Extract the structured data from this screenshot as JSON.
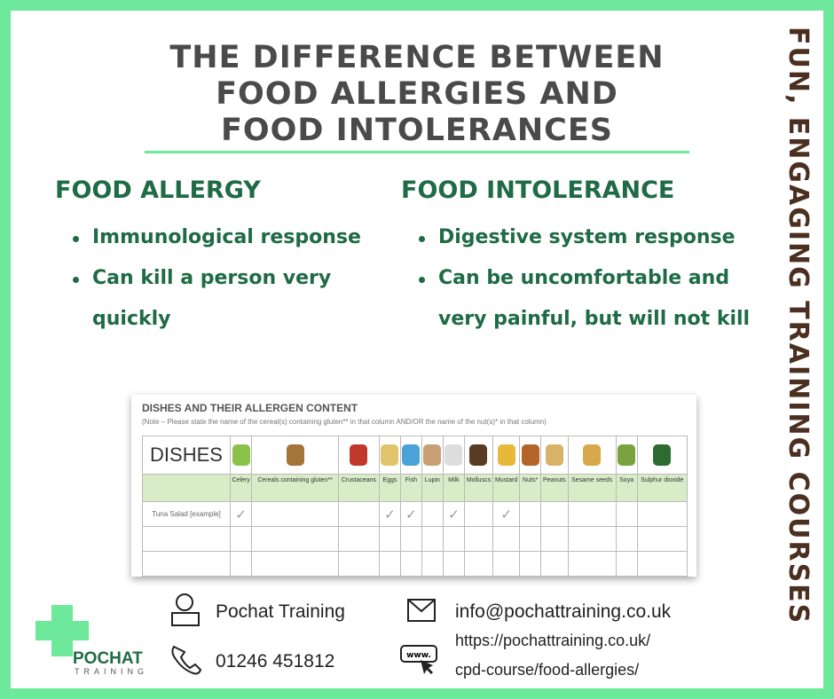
{
  "header": {
    "title_lines": [
      "THE DIFFERENCE BETWEEN",
      "FOOD ALLERGIES AND",
      "FOOD INTOLERANCES"
    ]
  },
  "columns": [
    {
      "heading": "FOOD ALLERGY",
      "bullets": [
        "Immunological response",
        "Can kill a person very quickly"
      ]
    },
    {
      "heading": "FOOD INTOLERANCE",
      "bullets": [
        "Digestive system response",
        "Can be uncomfortable and very painful, but will not kill"
      ]
    }
  ],
  "table": {
    "title": "DISHES AND THEIR ALLERGEN CONTENT",
    "note": "(Note – Please state the name of the cereal(s) containing gluten** in that column AND/OR the name of the nut(s)* in that column)",
    "corner": "DISHES",
    "allergens": [
      "Celery",
      "Cereals containing gluten**",
      "Crustaceans",
      "Eggs",
      "Fish",
      "Lupin",
      "Milk",
      "Molluscs",
      "Mustard",
      "Nuts*",
      "Peanuts",
      "Sesame seeds",
      "Soya",
      "Sulphur dioxide"
    ],
    "rows": [
      {
        "dish": "Tuna Salad [example]",
        "cells": [
          "✓",
          null,
          null,
          "✓",
          "✓",
          null,
          "✓",
          null,
          "✓",
          null,
          null,
          null,
          null,
          null
        ]
      }
    ]
  },
  "logo": {
    "name": "POCHAT",
    "sub": "TRAINING"
  },
  "contact": {
    "company": "Pochat Training",
    "phone": "01246 451812",
    "email": "info@pochattraining.co.uk",
    "url_lines": [
      "https://pochattraining.co.uk/",
      "cpd-course/food-allergies/"
    ]
  },
  "side_text": "FUN, ENGAGING TRAINING COURSES"
}
